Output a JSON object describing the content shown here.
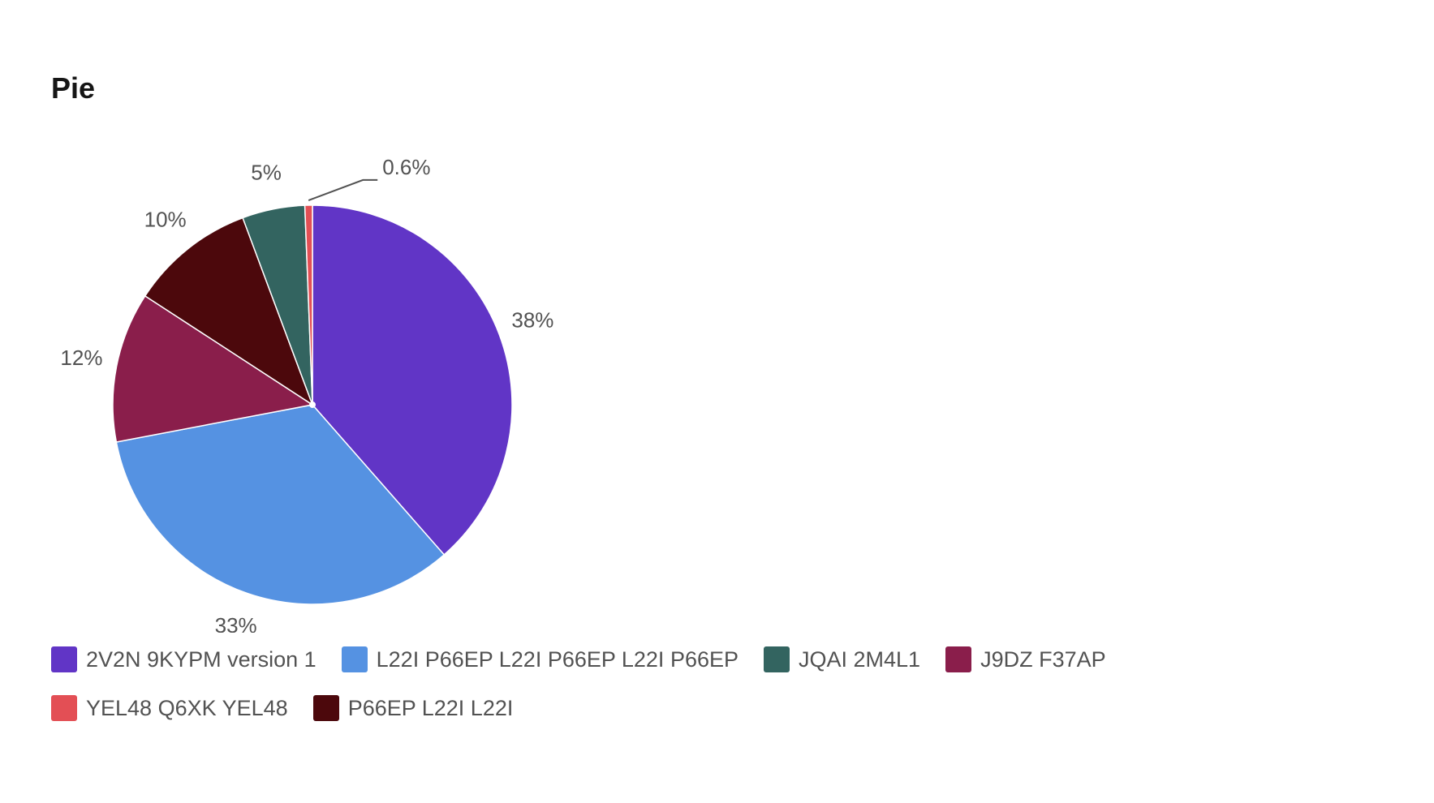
{
  "chart_data": {
    "type": "pie",
    "title": "Pie",
    "slices": [
      {
        "name": "2V2N 9KYPM version 1",
        "value": 38,
        "label": "38%",
        "color": "#6135c6"
      },
      {
        "name": "L22I P66EP L22I P66EP L22I P66EP",
        "value": 33,
        "label": "33%",
        "color": "#5592e2"
      },
      {
        "name": "J9DZ F37AP",
        "value": 12,
        "label": "12%",
        "color": "#8a1e4b"
      },
      {
        "name": "P66EP L22I L22I",
        "value": 10,
        "label": "10%",
        "color": "#4c080c"
      },
      {
        "name": "JQAI 2M4L1",
        "value": 5,
        "label": "5%",
        "color": "#336460"
      },
      {
        "name": "YEL48 Q6XK YEL48",
        "value": 0.6,
        "label": "0.6%",
        "color": "#e34f55"
      }
    ],
    "legend": {
      "position": "bottom",
      "items": [
        {
          "label": "2V2N 9KYPM version 1",
          "color": "#6135c6"
        },
        {
          "label": "L22I P66EP L22I P66EP L22I P66EP",
          "color": "#5592e2"
        },
        {
          "label": "JQAI 2M4L1",
          "color": "#336460"
        },
        {
          "label": "J9DZ F37AP",
          "color": "#8a1e4b"
        },
        {
          "label": "YEL48 Q6XK YEL48",
          "color": "#e34f55"
        },
        {
          "label": "P66EP L22I L22I",
          "color": "#4c080c"
        }
      ]
    }
  }
}
